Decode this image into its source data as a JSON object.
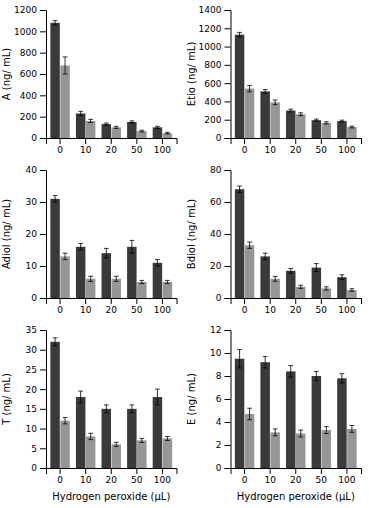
{
  "chart_data": [
    {
      "type": "bar",
      "y_label": "A (ng/ mL)",
      "categories": [
        "0",
        "10",
        "20",
        "50",
        "100"
      ],
      "ylim": [
        0,
        1200
      ],
      "yticks": [
        0,
        200,
        400,
        600,
        800,
        1000,
        1200
      ],
      "series": [
        {
          "color": "#3a3a3a",
          "values": [
            1080,
            230,
            130,
            150,
            100
          ],
          "errors": [
            20,
            20,
            10,
            10,
            10
          ]
        },
        {
          "color": "#969696",
          "values": [
            680,
            160,
            100,
            65,
            45
          ],
          "errors": [
            80,
            15,
            10,
            8,
            8
          ]
        }
      ]
    },
    {
      "type": "bar",
      "y_label": "Etio (ng/ mL)",
      "categories": [
        "0",
        "10",
        "20",
        "50",
        "100"
      ],
      "ylim": [
        0,
        1400
      ],
      "yticks": [
        0,
        200,
        400,
        600,
        800,
        1000,
        1200,
        1400
      ],
      "series": [
        {
          "color": "#3a3a3a",
          "values": [
            1130,
            510,
            300,
            195,
            185
          ],
          "errors": [
            25,
            20,
            15,
            12,
            10
          ]
        },
        {
          "color": "#969696",
          "values": [
            540,
            390,
            260,
            165,
            120
          ],
          "errors": [
            35,
            25,
            15,
            12,
            10
          ]
        }
      ]
    },
    {
      "type": "bar",
      "y_label": "Adiol (ng/ mL)",
      "categories": [
        "0",
        "10",
        "20",
        "50",
        "100"
      ],
      "ylim": [
        0,
        40
      ],
      "yticks": [
        0,
        10,
        20,
        30,
        40
      ],
      "series": [
        {
          "color": "#3a3a3a",
          "values": [
            31,
            16,
            14,
            16,
            11
          ],
          "errors": [
            1.0,
            1.0,
            1.5,
            2.0,
            1.0
          ]
        },
        {
          "color": "#969696",
          "values": [
            13,
            6,
            6,
            5,
            5
          ],
          "errors": [
            1.0,
            0.8,
            0.8,
            0.5,
            0.5
          ]
        }
      ]
    },
    {
      "type": "bar",
      "y_label": "Bdiol (ng/ mL)",
      "categories": [
        "0",
        "10",
        "20",
        "50",
        "100"
      ],
      "ylim": [
        0,
        80
      ],
      "yticks": [
        0,
        20,
        40,
        60,
        80
      ],
      "series": [
        {
          "color": "#3a3a3a",
          "values": [
            68,
            26,
            17,
            19,
            13
          ],
          "errors": [
            2.0,
            2.0,
            1.5,
            2.5,
            1.5
          ]
        },
        {
          "color": "#969696",
          "values": [
            33,
            12,
            7,
            6,
            5
          ],
          "errors": [
            2.0,
            1.5,
            1.0,
            1.0,
            0.8
          ]
        }
      ]
    },
    {
      "type": "bar",
      "y_label": "T (ng/ mL)",
      "x_label": "Hydrogen peroxide (μL)",
      "categories": [
        "0",
        "10",
        "20",
        "50",
        "100"
      ],
      "ylim": [
        0,
        35
      ],
      "yticks": [
        0,
        5,
        10,
        15,
        20,
        25,
        30,
        35
      ],
      "series": [
        {
          "color": "#3a3a3a",
          "values": [
            32,
            18,
            15,
            15,
            18
          ],
          "errors": [
            1.0,
            1.5,
            1.0,
            1.0,
            2.0
          ]
        },
        {
          "color": "#969696",
          "values": [
            12,
            8,
            6,
            7,
            7.5
          ],
          "errors": [
            0.8,
            0.8,
            0.5,
            0.5,
            0.5
          ]
        }
      ]
    },
    {
      "type": "bar",
      "y_label": "E (ng/ mL)",
      "x_label": "Hydrogen peroxide (μL)",
      "categories": [
        "0",
        "10",
        "20",
        "50",
        "100"
      ],
      "ylim": [
        0,
        12
      ],
      "yticks": [
        0,
        2,
        4,
        6,
        8,
        10,
        12
      ],
      "series": [
        {
          "color": "#3a3a3a",
          "values": [
            9.5,
            9.2,
            8.4,
            8.0,
            7.8
          ],
          "errors": [
            0.8,
            0.5,
            0.5,
            0.4,
            0.4
          ]
        },
        {
          "color": "#969696",
          "values": [
            4.7,
            3.1,
            3.0,
            3.3,
            3.4
          ],
          "errors": [
            0.5,
            0.3,
            0.3,
            0.3,
            0.3
          ]
        }
      ]
    }
  ]
}
